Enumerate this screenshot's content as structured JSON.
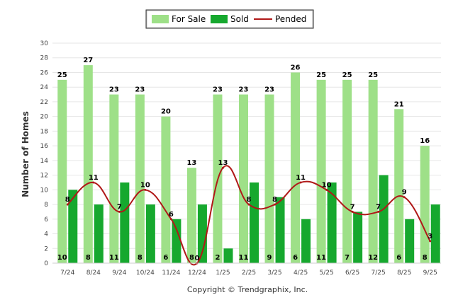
{
  "chart_data": {
    "type": "bar",
    "categories": [
      "7/24",
      "8/24",
      "9/24",
      "10/24",
      "11/24",
      "12/24",
      "1/25",
      "2/25",
      "3/25",
      "4/25",
      "5/25",
      "6/25",
      "7/25",
      "8/25",
      "9/25"
    ],
    "series": [
      {
        "name": "For Sale",
        "type": "bar",
        "values": [
          25,
          27,
          23,
          23,
          20,
          13,
          23,
          23,
          23,
          26,
          25,
          25,
          25,
          21,
          16
        ]
      },
      {
        "name": "Sold",
        "type": "bar",
        "values": [
          10,
          8,
          11,
          8,
          6,
          8,
          2,
          11,
          9,
          6,
          11,
          7,
          12,
          6,
          8
        ]
      },
      {
        "name": "Pended",
        "type": "line",
        "values": [
          8,
          11,
          7,
          10,
          6,
          0,
          13,
          8,
          8,
          11,
          10,
          7,
          7,
          9,
          3
        ]
      }
    ],
    "sold_labels": [
      "10",
      "8",
      "11",
      "8",
      "6",
      "8",
      "2",
      "11",
      "9",
      "6",
      "11",
      "7",
      "12",
      "6",
      "8"
    ],
    "ylabel": "Number of Homes",
    "ylim": [
      0,
      30
    ],
    "yticks": [
      0,
      2,
      4,
      6,
      8,
      10,
      12,
      14,
      16,
      18,
      20,
      22,
      24,
      26,
      28,
      30
    ],
    "grid": true,
    "legend_position": "top",
    "colors": {
      "for_sale": "#9ee088",
      "sold": "#16a82e",
      "pended": "#b01818",
      "grid": "#e6e6e6"
    }
  },
  "credit": "Copyright © Trendgraphix, Inc."
}
